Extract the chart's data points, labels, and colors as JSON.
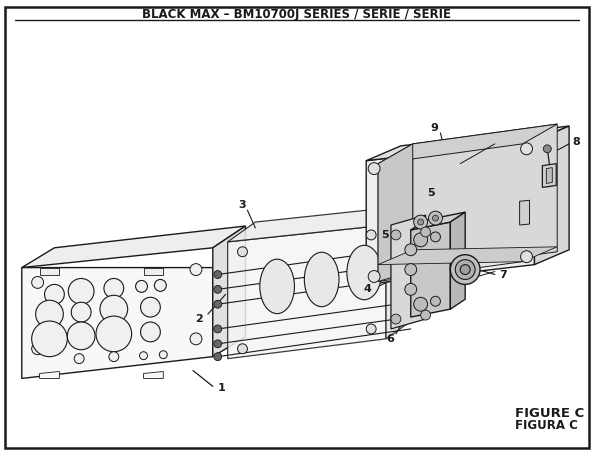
{
  "title": "BLACK MAX – BM10700J SERIES / SÉRIE / SERIE",
  "figure_label": "FIGURE C",
  "figura_label": "FIGURA C",
  "bg_color": "#ffffff",
  "line_color": "#1a1a1a",
  "line_width": 0.9,
  "title_fontsize": 8.5,
  "fig_label_fontsize": 9.5,
  "part_label_fontsize": 7.5
}
